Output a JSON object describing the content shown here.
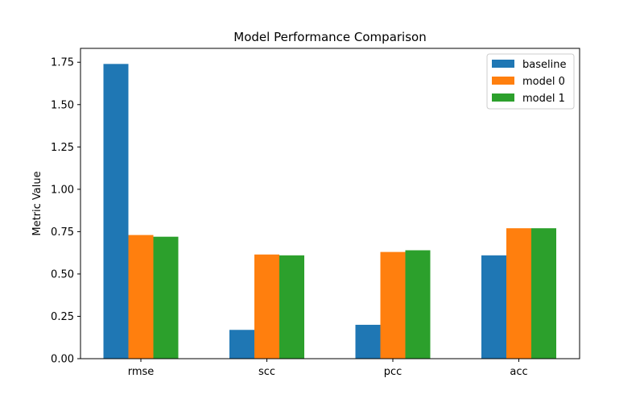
{
  "chart_data": {
    "type": "bar",
    "title": "Model Performance Comparison",
    "xlabel": "",
    "ylabel": "Metric Value",
    "categories": [
      "rmse",
      "scc",
      "pcc",
      "acc"
    ],
    "series": [
      {
        "name": "baseline",
        "color": "#1f77b4",
        "values": [
          1.74,
          0.17,
          0.2,
          0.61
        ]
      },
      {
        "name": "model 0",
        "color": "#ff7f0e",
        "values": [
          0.73,
          0.615,
          0.63,
          0.77
        ]
      },
      {
        "name": "model 1",
        "color": "#2ca02c",
        "values": [
          0.72,
          0.61,
          0.64,
          0.77
        ]
      }
    ],
    "ylim": [
      0,
      1.832
    ],
    "yticks": [
      "0.00",
      "0.25",
      "0.50",
      "0.75",
      "1.00",
      "1.25",
      "1.50",
      "1.75"
    ],
    "grid": false,
    "legend_position": "top-right"
  }
}
